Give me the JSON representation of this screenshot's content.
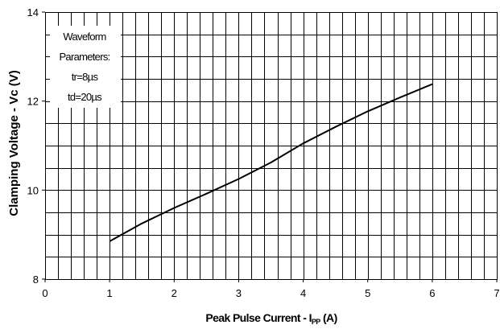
{
  "chart_data": {
    "type": "line",
    "title": "",
    "xlabel": "Peak Pulse Current - I",
    "xlabel_sub": "PP",
    "xlabel_unit": " (A)",
    "ylabel": "Clamping Voltage - Vc (V)",
    "xlim": [
      0,
      7
    ],
    "ylim": [
      8,
      14
    ],
    "x_ticks": [
      "0",
      "1",
      "2",
      "3",
      "4",
      "5",
      "6",
      "7"
    ],
    "y_ticks": [
      "8",
      "10",
      "12",
      "14"
    ],
    "grid": true,
    "legend_position": "top-left",
    "annotation": [
      "Waveform",
      "Parameters:",
      "tr=8µs",
      "td=20µs"
    ],
    "series": [
      {
        "values": [
          {
            "x": 1.0,
            "y": 8.85
          },
          {
            "x": 1.5,
            "y": 9.25
          },
          {
            "x": 2.0,
            "y": 9.6
          },
          {
            "x": 2.5,
            "y": 9.92
          },
          {
            "x": 3.0,
            "y": 10.25
          },
          {
            "x": 3.5,
            "y": 10.62
          },
          {
            "x": 4.0,
            "y": 11.05
          },
          {
            "x": 4.5,
            "y": 11.42
          },
          {
            "x": 5.0,
            "y": 11.77
          },
          {
            "x": 5.5,
            "y": 12.08
          },
          {
            "x": 6.0,
            "y": 12.38
          }
        ]
      }
    ]
  }
}
